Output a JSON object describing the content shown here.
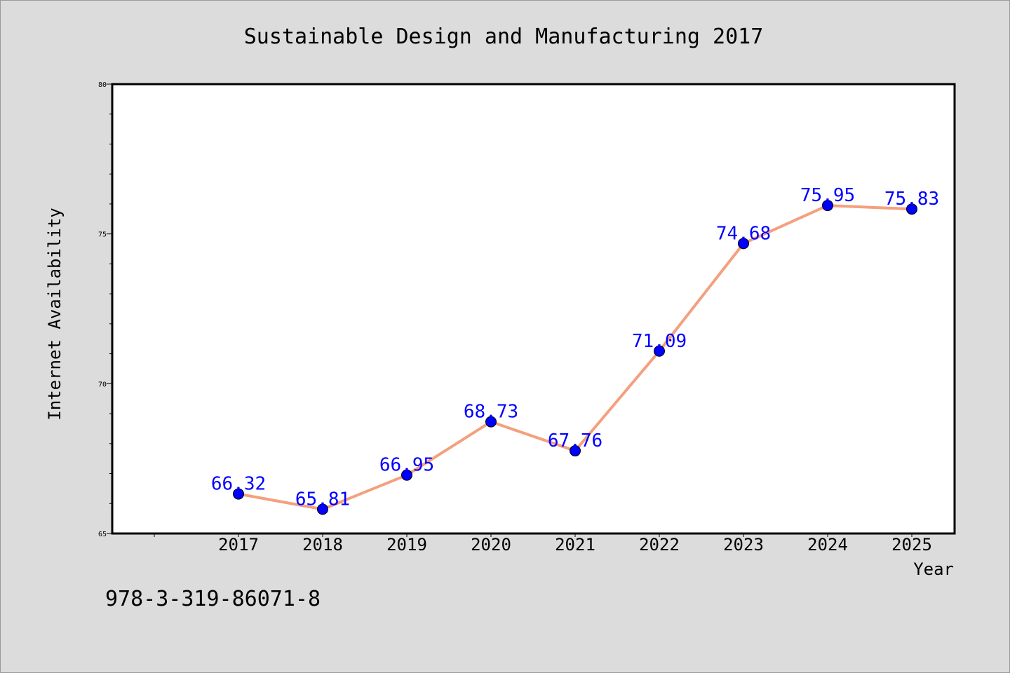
{
  "chart_data": {
    "type": "line",
    "title": "Sustainable Design and Manufacturing 2017",
    "xlabel": "Year",
    "ylabel": "Internet Availability",
    "footer_text": "978-3-319-86071-8",
    "categories": [
      "2017",
      "2018",
      "2019",
      "2020",
      "2021",
      "2022",
      "2023",
      "2024",
      "2025"
    ],
    "series": [
      {
        "values": [
          66.32,
          65.81,
          66.95,
          68.73,
          67.76,
          71.09,
          74.68,
          75.95,
          75.83
        ],
        "data_labels": [
          "66.32",
          "65.81",
          "66.95",
          "68.73",
          "67.76",
          "71.09",
          "74.68",
          "75.95",
          "75.83"
        ]
      }
    ],
    "ylim": [
      65,
      80
    ],
    "y_ticks": [
      "65",
      "70",
      "75",
      "80"
    ],
    "grid": false,
    "colors": {
      "background": "#dcdcdc",
      "plot_background": "#ffffff",
      "line": "#f4a07e",
      "marker": "#0000ff",
      "data_label": "#0000ff",
      "text": "#000000"
    }
  }
}
